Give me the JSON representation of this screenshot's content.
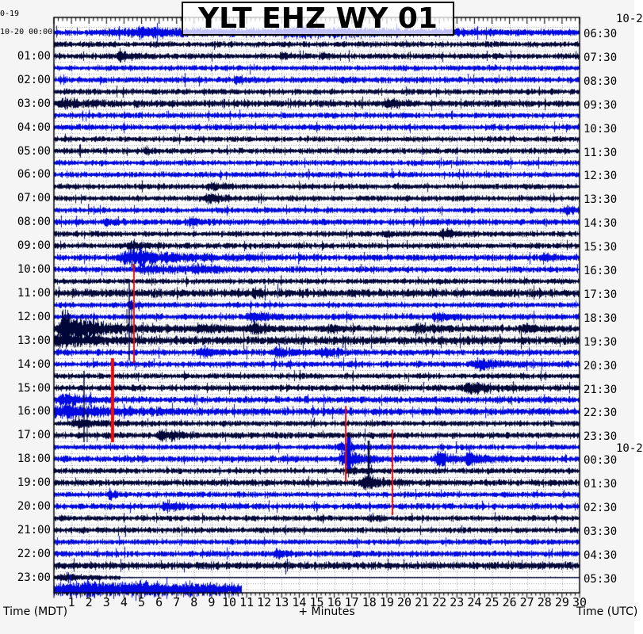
{
  "title": "YLT EHZ WY 01",
  "dates": {
    "top_left": "0-19",
    "top_right": "10-2",
    "mid_right": "10-2"
  },
  "axis": {
    "left_caption": "Time (MDT)",
    "bottom_caption": "+ Minutes",
    "right_caption": "Time (UTC)"
  },
  "left_times": [
    "10-20 00:00",
    "01:00",
    "02:00",
    "03:00",
    "04:00",
    "05:00",
    "06:00",
    "07:00",
    "08:00",
    "09:00",
    "10:00",
    "11:00",
    "12:00",
    "13:00",
    "14:00",
    "15:00",
    "16:00",
    "17:00",
    "18:00",
    "19:00",
    "20:00",
    "21:00",
    "22:00",
    "23:00"
  ],
  "right_times": [
    "06:30",
    "07:30",
    "08:30",
    "09:30",
    "10:30",
    "11:30",
    "12:30",
    "13:30",
    "14:30",
    "15:30",
    "16:30",
    "17:30",
    "18:30",
    "19:30",
    "20:30",
    "21:30",
    "22:30",
    "23:30",
    "00:30",
    "01:30",
    "02:30",
    "03:30",
    "04:30",
    "05:30"
  ],
  "minutes": [
    "1",
    "2",
    "3",
    "4",
    "5",
    "6",
    "7",
    "8",
    "9",
    "10",
    "11",
    "12",
    "13",
    "14",
    "15",
    "16",
    "17",
    "18",
    "19",
    "20",
    "21",
    "22",
    "23",
    "24",
    "25",
    "26",
    "27",
    "28",
    "29",
    "30"
  ],
  "chart_data": {
    "type": "line",
    "subtype": "helicorder-seismogram",
    "title": "YLT EHZ WY 01",
    "xlabel": "+ Minutes",
    "xlim": [
      0,
      30
    ],
    "row_duration_minutes": 30,
    "rows_count": 48,
    "grid": "dotted",
    "palette": {
      "blue": "#0009e0",
      "navy": "#000638",
      "red": "#e81010",
      "grid": "#9b9b9b",
      "plot_bg": "#ffffff"
    },
    "rows": [
      {
        "c": "b",
        "b": 3.2,
        "e": [
          [
            5,
            6,
            5
          ],
          [
            14,
            7,
            4.5
          ]
        ]
      },
      {
        "c": "n",
        "b": 3.0,
        "e": []
      },
      {
        "c": "n",
        "b": 3.0,
        "e": [
          [
            3.8,
            0.5,
            7
          ],
          [
            13,
            0.35,
            3.5
          ],
          [
            15.3,
            0.35,
            3.5
          ]
        ]
      },
      {
        "c": "b",
        "b": 2.9,
        "e": []
      },
      {
        "c": "b",
        "b": 3.2,
        "e": [
          [
            10.4,
            0.5,
            4.5
          ]
        ]
      },
      {
        "c": "n",
        "b": 3.0,
        "e": []
      },
      {
        "c": "n",
        "b": 3.8,
        "e": [
          [
            0.5,
            1.2,
            4
          ],
          [
            19,
            0.5,
            4
          ]
        ]
      },
      {
        "c": "b",
        "b": 2.9,
        "e": []
      },
      {
        "c": "b",
        "b": 3.2,
        "e": []
      },
      {
        "c": "n",
        "b": 2.9,
        "e": []
      },
      {
        "c": "n",
        "b": 3.0,
        "e": [
          [
            5.2,
            0.3,
            3.5
          ]
        ]
      },
      {
        "c": "b",
        "b": 2.9,
        "e": []
      },
      {
        "c": "b",
        "b": 3.0,
        "e": []
      },
      {
        "c": "n",
        "b": 2.9,
        "e": [
          [
            9,
            0.8,
            3.5
          ]
        ]
      },
      {
        "c": "n",
        "b": 3.0,
        "e": [
          [
            8.8,
            0.7,
            5.5
          ]
        ]
      },
      {
        "c": "b",
        "b": 2.9,
        "e": [
          [
            29.2,
            0.5,
            5
          ]
        ]
      },
      {
        "c": "b",
        "b": 3.2,
        "e": [
          [
            3,
            0.4,
            4
          ],
          [
            7.7,
            0.5,
            4.5
          ]
        ]
      },
      {
        "c": "n",
        "b": 3.0,
        "e": [
          [
            19,
            0.5,
            4
          ],
          [
            22.2,
            0.8,
            5
          ]
        ]
      },
      {
        "c": "n",
        "b": 3.0,
        "e": [
          [
            4.4,
            0.8,
            4.5
          ]
        ]
      },
      {
        "c": "b",
        "b": 3.4,
        "e": [
          [
            4.5,
            2.6,
            9.5
          ],
          [
            27.9,
            0.4,
            4.5
          ]
        ]
      },
      {
        "c": "b",
        "b": 3.2,
        "e": [
          [
            5.2,
            2.5,
            3.8
          ],
          [
            8.2,
            1.5,
            3
          ]
        ]
      },
      {
        "c": "n",
        "b": 2.9,
        "e": []
      },
      {
        "c": "n",
        "b": 4.3,
        "e": [
          [
            11.4,
            0.5,
            4
          ]
        ]
      },
      {
        "c": "b",
        "b": 2.9,
        "e": [
          [
            4.4,
            0.25,
            5
          ]
        ]
      },
      {
        "c": "b",
        "b": 3.2,
        "e": [
          [
            11.3,
            0.9,
            6
          ],
          [
            21.8,
            0.8,
            4.5
          ]
        ]
      },
      {
        "c": "n",
        "b": 3.2,
        "e": [
          [
            0.55,
            0.25,
            24
          ],
          [
            0.95,
            2.6,
            13
          ],
          [
            8.4,
            1.4,
            4
          ],
          [
            11.4,
            1.2,
            5
          ],
          [
            15.8,
            0.8,
            4
          ],
          [
            20.8,
            1.4,
            5
          ],
          [
            27,
            1,
            4
          ]
        ]
      },
      {
        "c": "n",
        "b": 4.3,
        "e": [
          [
            0.3,
            2,
            5
          ]
        ]
      },
      {
        "c": "b",
        "b": 3.2,
        "e": [
          [
            8.4,
            1,
            4.5
          ],
          [
            12.8,
            1.4,
            4.5
          ],
          [
            15.4,
            0.8,
            4
          ]
        ]
      },
      {
        "c": "b",
        "b": 3.2,
        "e": [
          [
            24.2,
            1.1,
            6.5
          ]
        ]
      },
      {
        "c": "n",
        "b": 2.9,
        "e": []
      },
      {
        "c": "n",
        "b": 3.2,
        "e": [
          [
            23.7,
            1.2,
            6.5
          ]
        ]
      },
      {
        "c": "b",
        "b": 3.4,
        "e": [
          [
            0.6,
            1.5,
            5.5
          ]
        ]
      },
      {
        "c": "b",
        "b": 3.8,
        "e": [
          [
            0.8,
            3,
            7
          ]
        ]
      },
      {
        "c": "n",
        "b": 2.9,
        "e": [
          [
            1.3,
            1.4,
            4.5
          ]
        ]
      },
      {
        "c": "n",
        "b": 3.2,
        "e": [
          [
            6.2,
            1,
            6
          ]
        ]
      },
      {
        "c": "b",
        "b": 2.9,
        "e": [
          [
            16.4,
            0.8,
            5.5
          ]
        ]
      },
      {
        "c": "b",
        "b": 3.4,
        "e": [
          [
            16.6,
            1,
            9
          ],
          [
            21.9,
            0.9,
            8.5
          ],
          [
            23.7,
            0.8,
            7
          ]
        ]
      },
      {
        "c": "n",
        "b": 2.9,
        "e": [
          [
            16.8,
            0.6,
            4
          ]
        ]
      },
      {
        "c": "n",
        "b": 3.4,
        "e": [
          [
            17.7,
            0.9,
            8.5
          ]
        ]
      },
      {
        "c": "b",
        "b": 2.9,
        "e": [
          [
            3.2,
            0.3,
            5.5
          ]
        ]
      },
      {
        "c": "b",
        "b": 3.2,
        "e": [
          [
            6.4,
            0.8,
            4.5
          ]
        ]
      },
      {
        "c": "n",
        "b": 2.9,
        "e": [
          [
            18.1,
            0.4,
            4
          ]
        ]
      },
      {
        "c": "n",
        "b": 3.0,
        "e": []
      },
      {
        "c": "b",
        "b": 2.9,
        "e": []
      },
      {
        "c": "b",
        "b": 3.2,
        "e": [
          [
            12.7,
            0.6,
            4.5
          ]
        ]
      },
      {
        "c": "n",
        "b": 4.0,
        "e": []
      },
      {
        "c": "n",
        "b": 2.2,
        "qa": 3.8,
        "e": [
          [
            0.6,
            1.5,
            3.5
          ],
          [
            4.3,
            0.05,
            3
          ],
          [
            10,
            0.05,
            3
          ]
        ]
      },
      {
        "c": "b",
        "b": 6.0,
        "end": 10.7,
        "e": [
          [
            2,
            6,
            5
          ]
        ]
      }
    ],
    "red_overlays": [
      [
        169,
        333,
        458,
        2
      ],
      [
        142,
        452,
        558,
        4
      ],
      [
        436,
        512,
        608,
        2
      ],
      [
        495,
        542,
        650,
        2
      ]
    ],
    "dark_overlays": [
      [
        163,
        352,
        455,
        1.5
      ],
      [
        166,
        380,
        430,
        1
      ],
      [
        106,
        468,
        558,
        1.5
      ],
      [
        110,
        520,
        558,
        1
      ],
      [
        465,
        556,
        612,
        2.5
      ],
      [
        160,
        390,
        408,
        1
      ]
    ],
    "blue_overlays": [
      [
        440,
        552,
        592,
        5
      ]
    ]
  }
}
